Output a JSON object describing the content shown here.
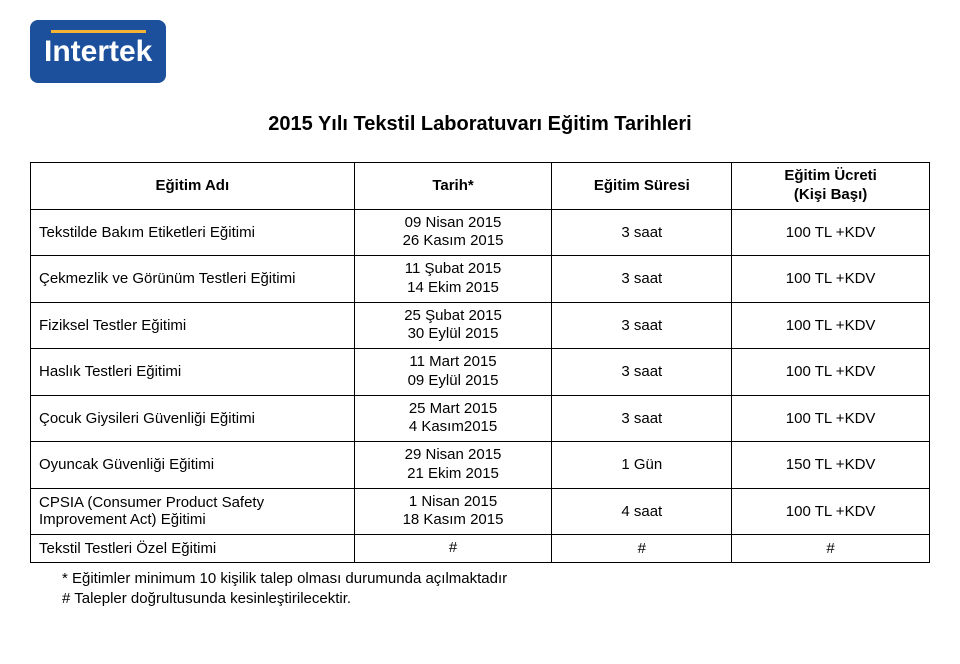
{
  "logo": {
    "text": "Intertek",
    "bg_color": "#1c4f9c",
    "accent_color": "#f5b335"
  },
  "title": "2015 Yılı Tekstil Laboratuvarı Eğitim Tarihleri",
  "columns": {
    "name": "Eğitim Adı",
    "date": "Tarih*",
    "duration": "Eğitim Süresi",
    "price_line1": "Eğitim Ücreti",
    "price_line2": "(Kişi Başı)"
  },
  "rows": [
    {
      "name": "Tekstilde Bakım Etiketleri Eğitimi",
      "dates": [
        "09 Nisan 2015",
        "26 Kasım 2015"
      ],
      "duration": "3 saat",
      "price": "100 TL +KDV"
    },
    {
      "name": "Çekmezlik ve Görünüm Testleri Eğitimi",
      "dates": [
        "11 Şubat 2015",
        "14 Ekim 2015"
      ],
      "duration": "3 saat",
      "price": "100 TL +KDV"
    },
    {
      "name": "Fiziksel Testler Eğitimi",
      "dates": [
        "25 Şubat 2015",
        "30 Eylül 2015"
      ],
      "duration": "3 saat",
      "price": "100 TL +KDV"
    },
    {
      "name": "Haslık Testleri Eğitimi",
      "dates": [
        "11 Mart 2015",
        "09 Eylül 2015"
      ],
      "duration": "3 saat",
      "price": "100 TL +KDV"
    },
    {
      "name": "Çocuk Giysileri Güvenliği Eğitimi",
      "dates": [
        "25 Mart 2015",
        "4 Kasım2015"
      ],
      "duration": "3 saat",
      "price": "100 TL +KDV"
    },
    {
      "name": "Oyuncak Güvenliği Eğitimi",
      "dates": [
        "29 Nisan 2015",
        "21 Ekim 2015"
      ],
      "duration": "1 Gün",
      "price": "150 TL +KDV"
    },
    {
      "name": "CPSIA  (Consumer Product Safety Improvement Act) Eğitimi",
      "dates": [
        "1 Nisan 2015",
        "18 Kasım 2015"
      ],
      "duration": "4 saat",
      "price": "100 TL +KDV"
    },
    {
      "name": "Tekstil Testleri Özel Eğitimi",
      "dates": [
        "#"
      ],
      "duration": "#",
      "price": "#"
    }
  ],
  "footnotes": [
    "* Eğitimler minimum 10 kişilik talep olması durumunda açılmaktadır",
    "# Talepler doğrultusunda kesinleştirilecektir."
  ]
}
